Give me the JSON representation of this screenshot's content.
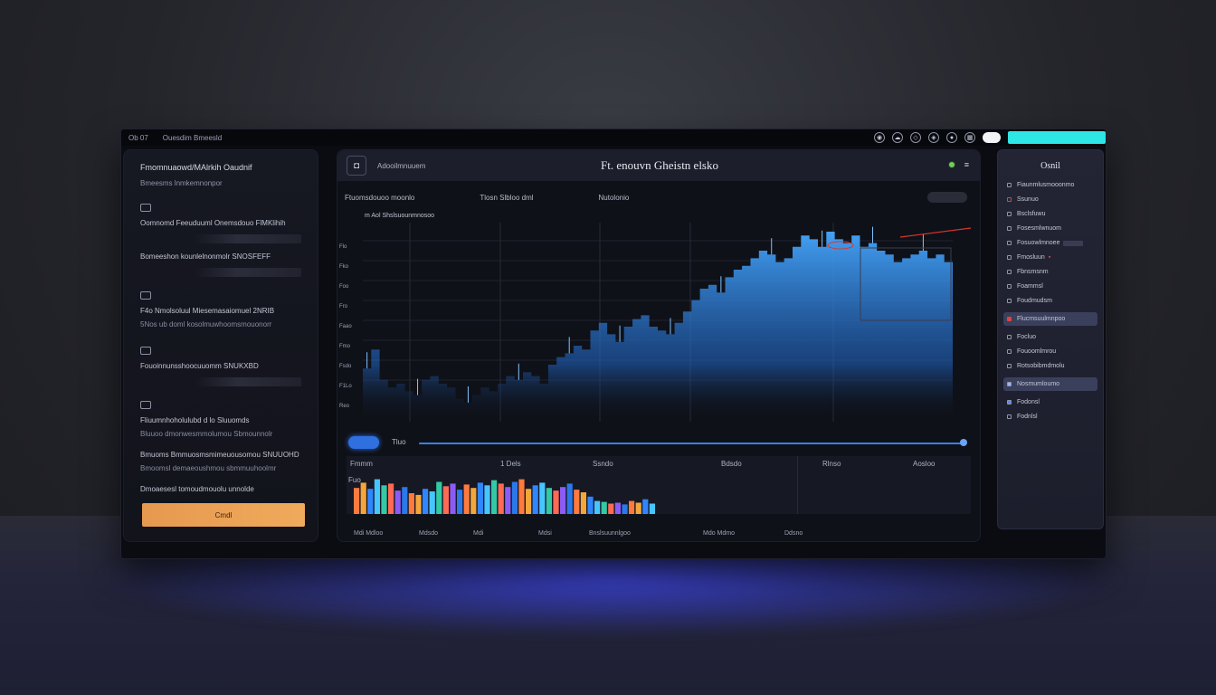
{
  "topbar": {
    "brand": "Ob 07",
    "app": "Ouesdim Bmeesld",
    "icons": [
      "eye-icon",
      "cloud-icon",
      "shield-icon",
      "shield-icon",
      "user-icon",
      "grid-icon"
    ]
  },
  "left_panel": {
    "title": "Fmomnuaowd/MAlrkih Oaudnif",
    "subtitle": "Bmeesms lnmkemnonpor",
    "heading": "Oomnomd Feeuduuml Onemsdouo FlMKlihih",
    "rows": [
      {
        "main": "Bomeeshon kounlelnonmolr SNOSFEFF",
        "sub": ""
      },
      {
        "main": "F4o Nmolsoluul Miesemasaiomuel 2NRIB",
        "sub": "5Nos ub doml kosolmuwhoomsmouonorr"
      },
      {
        "main": "Fouoinnunsshoocuuomm SNUKXBD",
        "sub": ""
      },
      {
        "main": "Fliuumnhoholulubd d lo Sluuomds",
        "sub": "Bluuoo dmonwesmmolumou Sbmounnolr"
      },
      {
        "main": "Bmuoms Bmmuosmsmimeuousomou SNUUOHD",
        "sub": "Bmoomsl demaeoushmou sbmmuuhoolmr"
      },
      {
        "main": "Dmoaesesl tomoudmouolu unnolde",
        "sub": ""
      }
    ],
    "cta_label": "Cmdl"
  },
  "center_panel": {
    "crumb": "Adooilmnuuem",
    "title": "Ft. enouvn Gheistn elsko",
    "tabs": [
      "Ftuomsdouoo moonlo",
      "Tlosn Slbloo dml",
      "Nutolonio"
    ],
    "chart_legend": "m Aol Shslsuounmnosoo",
    "y_ticks": [
      "Reo",
      "F1Lo",
      "Fsdo",
      "Fmo",
      "Faao",
      "Fro",
      "Foo",
      "Fko",
      "Flo"
    ],
    "slider_label": "Tluo",
    "bars_headers": [
      "Fmmm",
      "1 Dels",
      "Ssndo",
      "Bdsdo",
      "Rlnso",
      "Aosloo"
    ],
    "bars_side_label": "Fuo",
    "footer": [
      "Mdi Mdloo",
      "Mdsdo",
      "Mdi",
      "Mdsi",
      "Bnslsuunnlgoo",
      "Mdo Mdmo",
      "Ddsno"
    ]
  },
  "right_panel": {
    "title": "Osnil",
    "items": [
      "Fiaunmlusmooonmo",
      "Ssunuo",
      "Bsclsfuwu",
      "Fosesmlwnuom",
      "Fosuowlmnoee",
      "Fmosluun",
      "Fbnsmsnm",
      "Foammsl",
      "Foudmudsm",
      "Flucmsuulmnpoo",
      "Focluo",
      "Fouoomlmrou",
      "Rotsobibmdmolu",
      "Nosmumloumo",
      "Fodonsl",
      "Fodnlsl"
    ]
  },
  "chart_data": {
    "type": "area",
    "title": "",
    "xlabel": "",
    "ylabel": "",
    "series": [
      {
        "values": [
          28,
          38,
          22,
          18,
          20,
          16,
          14,
          22,
          24,
          20,
          18,
          12,
          10,
          14,
          18,
          16,
          20,
          24,
          22,
          26,
          24,
          20,
          30,
          34,
          36,
          40,
          38,
          48,
          52,
          46,
          42,
          50,
          54,
          56,
          50,
          48,
          46,
          52,
          58,
          64,
          70,
          72,
          68,
          76,
          80,
          82,
          86,
          90,
          88,
          84,
          86,
          92,
          98,
          96,
          92,
          100,
          96,
          94,
          98,
          92,
          94,
          90,
          88,
          84,
          86,
          88,
          90,
          86,
          88,
          84
        ]
      }
    ],
    "histogram": {
      "values": [
        60,
        72,
        58,
        80,
        66,
        70,
        54,
        62,
        48,
        44,
        58,
        52,
        74,
        64,
        70,
        56,
        68,
        60,
        72,
        66,
        78,
        70,
        62,
        74,
        80,
        58,
        66,
        72,
        60,
        54,
        62,
        70,
        56,
        50,
        40,
        30,
        28,
        24,
        26,
        22,
        30,
        26,
        34,
        24
      ],
      "colors": [
        "#ff7a3d",
        "#f3a63a",
        "#2f86ff",
        "#46c6ff",
        "#33c9a5",
        "#ff6a55",
        "#8a5cf5",
        "#2a78ea"
      ]
    }
  }
}
